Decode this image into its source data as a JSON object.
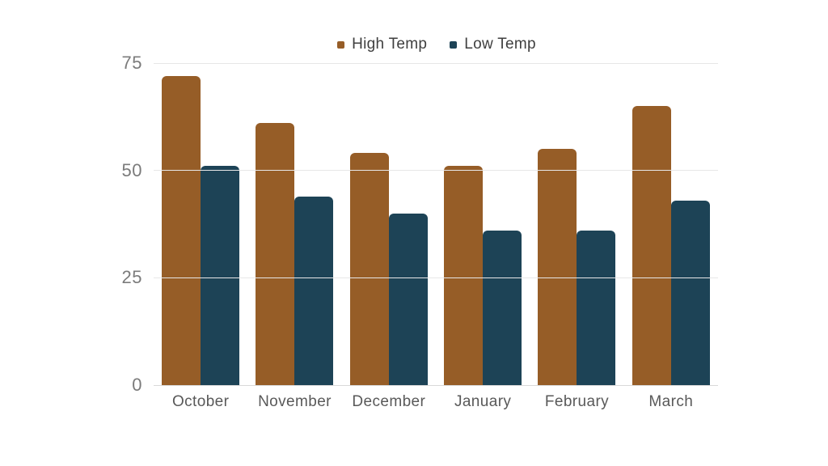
{
  "chart_data": {
    "type": "bar",
    "title": "",
    "categories": [
      "October",
      "November",
      "December",
      "January",
      "February",
      "March"
    ],
    "series": [
      {
        "name": "High Temp",
        "color": "#965D27",
        "values": [
          72,
          61,
          54,
          51,
          55,
          65
        ]
      },
      {
        "name": "Low Temp",
        "color": "#1D4356",
        "values": [
          51,
          44,
          40,
          36,
          36,
          43
        ]
      }
    ],
    "xlabel": "",
    "ylabel": "",
    "ylim": [
      0,
      75
    ],
    "yticks": [
      0,
      25,
      50,
      75
    ],
    "grid": true,
    "legend_position": "top-center",
    "colors": {
      "background": "#ffffff",
      "gridline": "#e7e7e7",
      "baseline": "#d9d9d9",
      "ytick_label": "#7b7b7b",
      "xtick_label": "#595959",
      "legend_text": "#3f3f3f"
    }
  }
}
